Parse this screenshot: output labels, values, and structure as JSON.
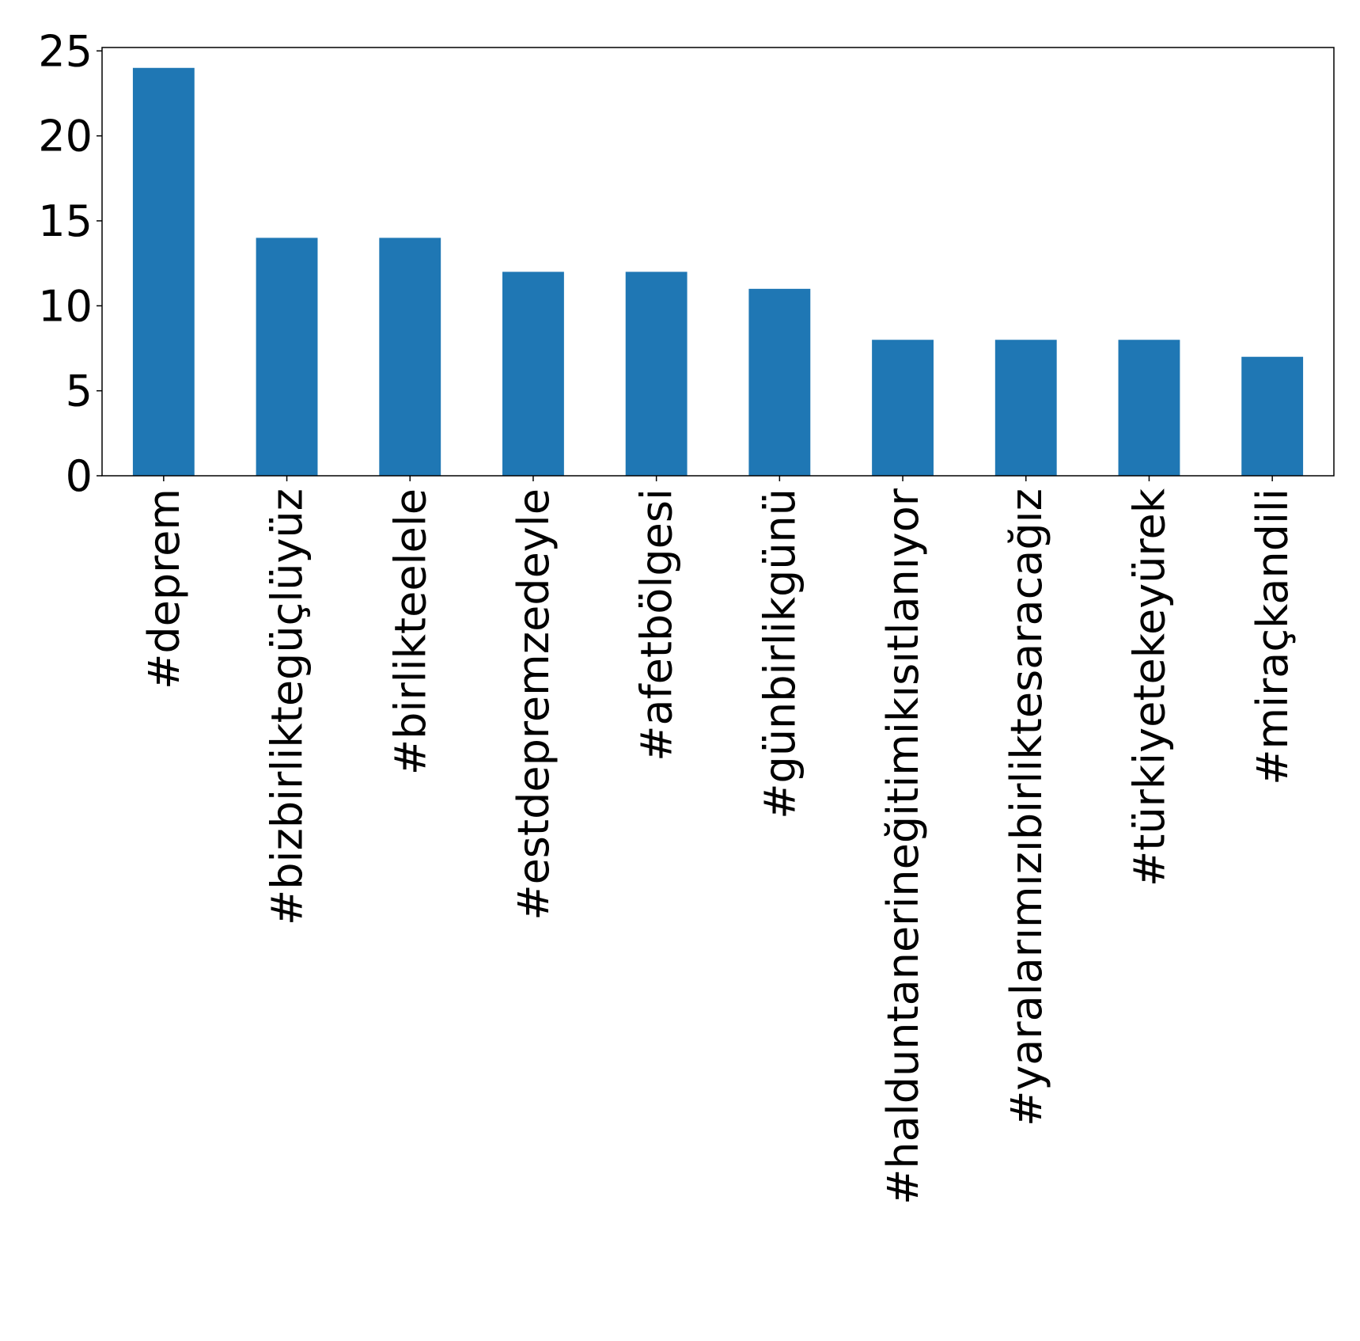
{
  "chart_data": {
    "type": "bar",
    "categories": [
      "#deprem",
      "#bizbirliktegüçlüyüz",
      "#birlikteelele",
      "#estdepremzedeyle",
      "#afetbölgesi",
      "#günbirlikgünü",
      "#halduntanerineğitimikısıtlanıyor",
      "#yaralarımızıbirliktesaracağız",
      "#türkiyetekeyürek",
      "#miraçkandili"
    ],
    "values": [
      24,
      14,
      14,
      12,
      12,
      11,
      8,
      8,
      8,
      7
    ],
    "title": "",
    "xlabel": "",
    "ylabel": "",
    "ylim": [
      0,
      25.2
    ],
    "yticks": [
      0,
      5,
      10,
      15,
      20,
      25
    ],
    "grid": false,
    "colors": {
      "bar": "#1f77b4",
      "axis": "#000000"
    }
  }
}
